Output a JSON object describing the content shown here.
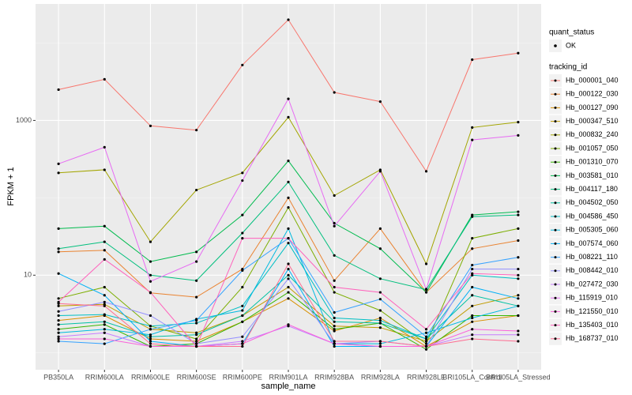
{
  "chart_data": {
    "type": "line",
    "x_label": "sample_name",
    "y_label": "FPKM + 1",
    "log_y": true,
    "grid": true,
    "categories": [
      "PB350LA",
      "RRIM600LA",
      "RRIM600LE",
      "RRIM600SE",
      "RRIM600PE",
      "RRIM901LA",
      "RRIM928BA",
      "RRIM928LA",
      "RRIM928LE",
      "BRI105LA_Control",
      "BRI105LA_Stressed"
    ],
    "ylim": [
      0.6,
      32000
    ],
    "yticks": [
      10,
      1000
    ],
    "point_legend_title": "quant_status",
    "point_legend_label": "OK",
    "legend_title": "tracking_id",
    "legend_position": "right",
    "series": [
      {
        "name": "Hb_000001_040",
        "color": "#F8766D",
        "values": [
          2500,
          3400,
          850,
          750,
          5200,
          20000,
          2300,
          1750,
          220,
          6100,
          7400
        ]
      },
      {
        "name": "Hb_000122_030",
        "color": "#EA8331",
        "values": [
          20,
          21,
          5.9,
          5.2,
          12,
          100,
          8.5,
          40,
          6,
          22,
          28
        ]
      },
      {
        "name": "Hb_000127_090",
        "color": "#D89000",
        "values": [
          2.6,
          3,
          1.5,
          1.4,
          2.5,
          5,
          1.9,
          2.8,
          1.2,
          2.5,
          3
        ]
      },
      {
        "name": "Hb_000347_510",
        "color": "#C09B00",
        "values": [
          4,
          4.2,
          2,
          1.8,
          3,
          7,
          2.2,
          2.1,
          1.4,
          4,
          5.5
        ]
      },
      {
        "name": "Hb_000832_240",
        "color": "#A3A500",
        "values": [
          210,
          230,
          27,
          126,
          210,
          1100,
          107,
          230,
          14,
          810,
          950
        ]
      },
      {
        "name": "Hb_001057_050",
        "color": "#7CAE00",
        "values": [
          5,
          7,
          2.2,
          1.5,
          7,
          75,
          6,
          3.5,
          1.3,
          30,
          40
        ]
      },
      {
        "name": "Hb_001310_070",
        "color": "#39B600",
        "values": [
          2,
          2.3,
          1.2,
          1.3,
          2.5,
          6,
          2,
          2.4,
          1.1,
          3,
          3
        ]
      },
      {
        "name": "Hb_003581_010",
        "color": "#00BB4E",
        "values": [
          40,
          43,
          15,
          20,
          60,
          300,
          47,
          22,
          6,
          60,
          66
        ]
      },
      {
        "name": "Hb_004117_180",
        "color": "#00BF7D",
        "values": [
          22,
          27,
          10,
          8.5,
          35,
          160,
          18,
          9,
          6.5,
          57,
          60
        ]
      },
      {
        "name": "Hb_004502_050",
        "color": "#00C1A3",
        "values": [
          2.3,
          2.5,
          1.6,
          1.7,
          3,
          10,
          2.5,
          2.4,
          1.5,
          5.5,
          4
        ]
      },
      {
        "name": "Hb_004586_450",
        "color": "#00BFC4",
        "values": [
          3,
          3.1,
          2.2,
          2.4,
          4,
          26,
          2.8,
          2.6,
          1.5,
          10,
          9
        ]
      },
      {
        "name": "Hb_005305_060",
        "color": "#00BAE0",
        "values": [
          1.8,
          2,
          1.7,
          2.7,
          3.5,
          40,
          1.3,
          1.3,
          1.8,
          2.8,
          4
        ]
      },
      {
        "name": "Hb_007574_060",
        "color": "#00B0F6",
        "values": [
          10.5,
          5.5,
          1.4,
          1.2,
          1.3,
          12,
          1.2,
          1.2,
          1.2,
          7,
          5
        ]
      },
      {
        "name": "Hb_008221_110",
        "color": "#35A2FF",
        "values": [
          1.4,
          1.3,
          2,
          2.6,
          11.5,
          30,
          3.3,
          4.9,
          1.6,
          13.5,
          17
        ]
      },
      {
        "name": "Hb_008442_010",
        "color": "#9590FF",
        "values": [
          3.4,
          4.5,
          3,
          1.3,
          1.6,
          9,
          1.3,
          1.4,
          1.2,
          12,
          12
        ]
      },
      {
        "name": "Hb_027472_030",
        "color": "#C77CFF",
        "values": [
          1.6,
          1.8,
          1.2,
          1.2,
          1.4,
          2.2,
          1.3,
          1.2,
          1.2,
          1.7,
          1.7
        ]
      },
      {
        "name": "Hb_115919_010",
        "color": "#E76BF3",
        "values": [
          275,
          450,
          8.3,
          15,
          167,
          1900,
          43,
          220,
          6.6,
          560,
          640
        ]
      },
      {
        "name": "Hb_121550_010",
        "color": "#FA62DB",
        "values": [
          1.5,
          1.5,
          1.2,
          1.2,
          1.3,
          2.3,
          1.3,
          1.2,
          1.2,
          2,
          1.9
        ]
      },
      {
        "name": "Hb_135403_010",
        "color": "#FF62BC",
        "values": [
          4.5,
          16,
          6,
          1.2,
          30,
          30,
          7,
          6,
          2,
          10.5,
          10
        ]
      },
      {
        "name": "Hb_168737_010",
        "color": "#FF6C91",
        "values": [
          4.3,
          4,
          1.3,
          1.2,
          1.2,
          14,
          1.4,
          1.4,
          1.2,
          1.5,
          1.4
        ]
      }
    ]
  }
}
